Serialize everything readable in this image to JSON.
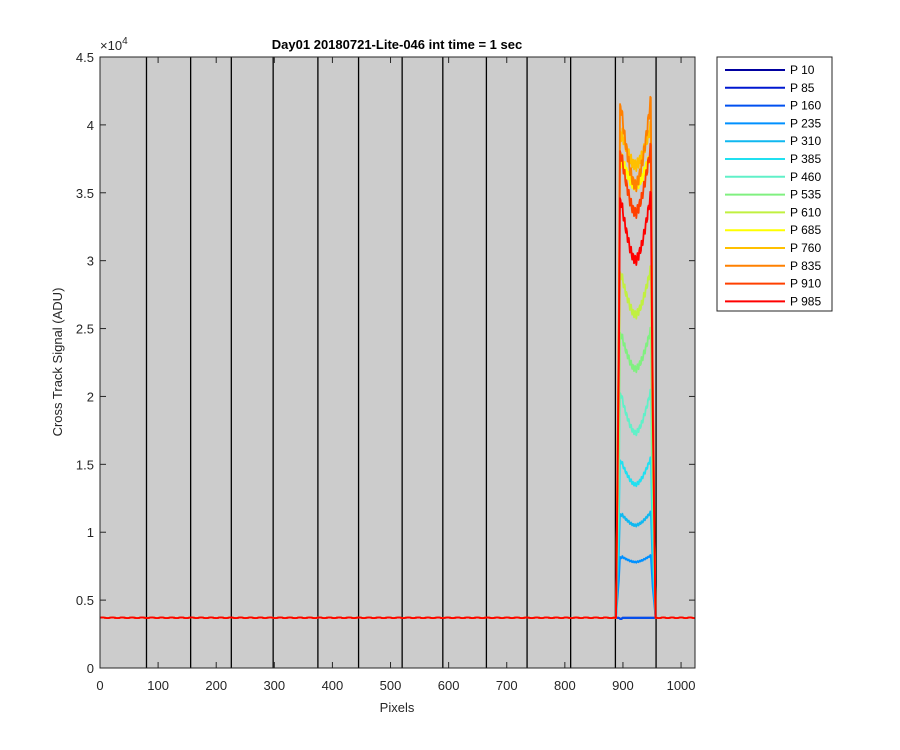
{
  "chart_data": {
    "type": "line",
    "title": "Day01 20180721-Lite-046 int time = 1 sec",
    "xlabel": "Pixels",
    "ylabel": "Cross Track Signal (ADU)",
    "y_exponent_label": "×10",
    "y_exponent_power": "4",
    "xlim": [
      0,
      1024
    ],
    "ylim": [
      0,
      45000
    ],
    "x_ticks": [
      0,
      100,
      200,
      300,
      400,
      500,
      600,
      700,
      800,
      900,
      1000
    ],
    "x_tick_labels": [
      "0",
      "100",
      "200",
      "300",
      "400",
      "500",
      "600",
      "700",
      "800",
      "900",
      "1000"
    ],
    "y_ticks": [
      0,
      5000,
      10000,
      15000,
      20000,
      25000,
      30000,
      35000,
      40000,
      45000
    ],
    "y_tick_labels": [
      "0",
      "0.5",
      "1",
      "1.5",
      "2",
      "2.5",
      "3",
      "3.5",
      "4",
      "4.5"
    ],
    "background_color": "#cccccc",
    "vertical_markers": [
      80,
      156,
      226,
      298,
      375,
      445,
      520,
      590,
      665,
      735,
      810,
      887,
      957
    ],
    "baseline": 3700,
    "plateau_x": [
      895,
      948
    ],
    "legend_position": "outside-right",
    "series": [
      {
        "name": "P 10",
        "color": "#0000a0",
        "edge": 3700,
        "dip": 3700
      },
      {
        "name": "P 85",
        "color": "#0018d0",
        "edge": 3700,
        "dip": 3700
      },
      {
        "name": "P 160",
        "color": "#0050f0",
        "edge": 3700,
        "dip": 3700
      },
      {
        "name": "P 235",
        "color": "#0090ff",
        "edge": 8300,
        "dip": 7800
      },
      {
        "name": "P 310",
        "color": "#10b8f0",
        "edge": 11500,
        "dip": 10500
      },
      {
        "name": "P 385",
        "color": "#20e0f0",
        "edge": 15500,
        "dip": 13500
      },
      {
        "name": "P 460",
        "color": "#60f0c8",
        "edge": 20500,
        "dip": 17300
      },
      {
        "name": "P 535",
        "color": "#80f080",
        "edge": 25000,
        "dip": 22000
      },
      {
        "name": "P 610",
        "color": "#c0f040",
        "edge": 29500,
        "dip": 26000
      },
      {
        "name": "P 685",
        "color": "#ffff00",
        "edge": 38000,
        "dip": 35500
      },
      {
        "name": "P 760",
        "color": "#ffc000",
        "edge": 40000,
        "dip": 37000
      },
      {
        "name": "P 835",
        "color": "#ff8000",
        "edge": 42000,
        "dip": 35500
      },
      {
        "name": "P 910",
        "color": "#ff4000",
        "edge": 38500,
        "dip": 33500
      },
      {
        "name": "P 985",
        "color": "#ff0000",
        "edge": 35000,
        "dip": 30000
      }
    ]
  }
}
